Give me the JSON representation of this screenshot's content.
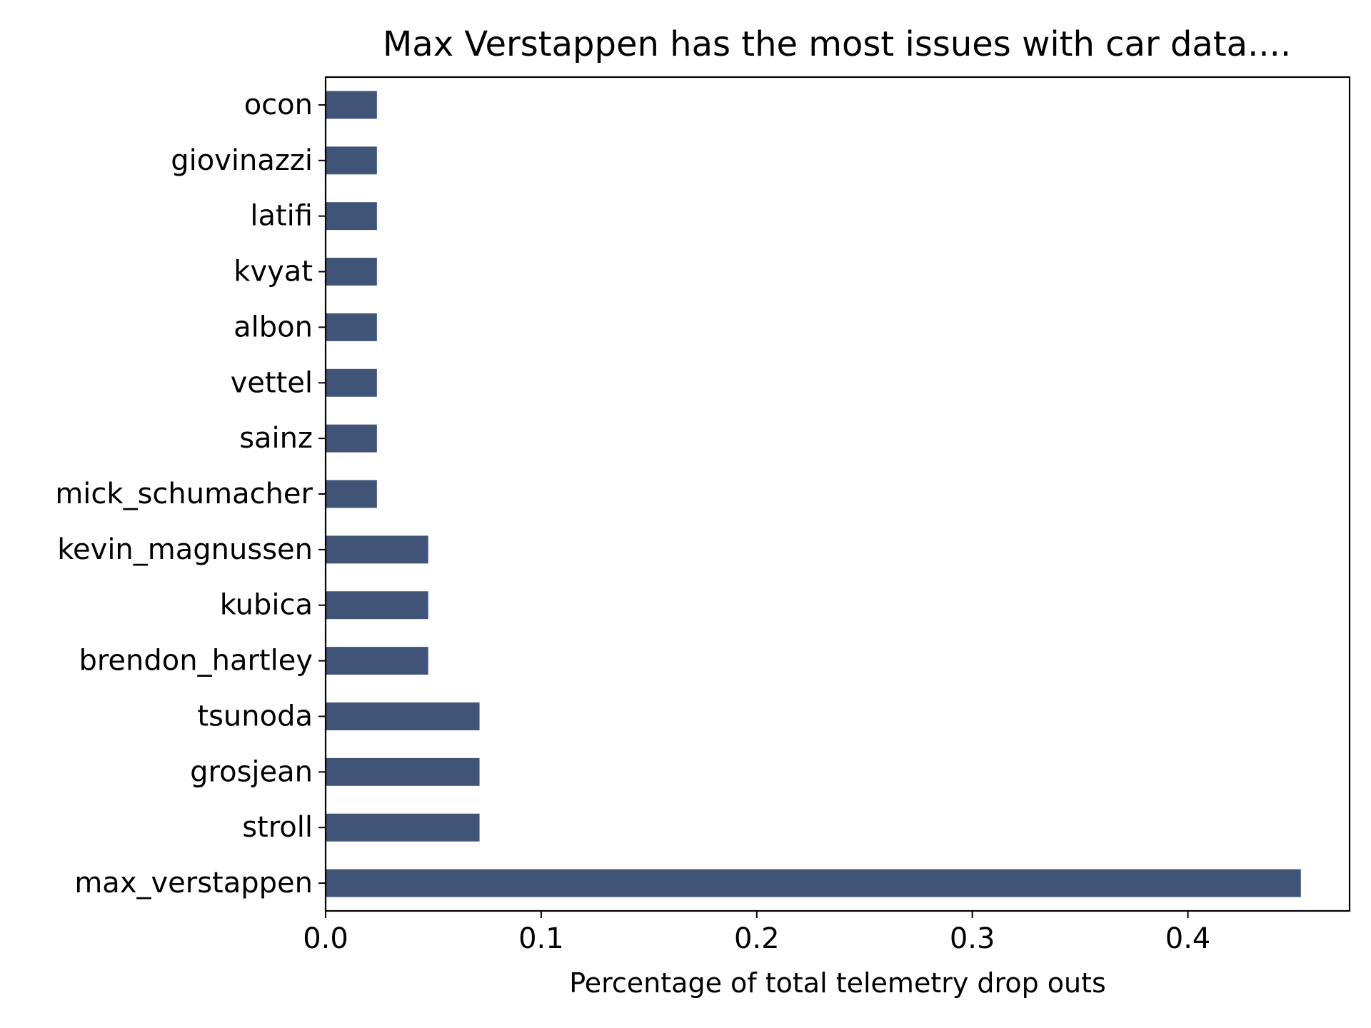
{
  "chart_data": {
    "type": "bar",
    "orientation": "horizontal",
    "title": "Max Verstappen has the most issues with car data....",
    "xlabel": "Percentage of total telemetry drop outs",
    "ylabel": "",
    "xlim": [
      0,
      0.475
    ],
    "xticks": [
      0.0,
      0.1,
      0.2,
      0.3,
      0.4
    ],
    "xtick_labels": [
      "0.0",
      "0.1",
      "0.2",
      "0.3",
      "0.4"
    ],
    "grid": false,
    "bar_color": "#3f5476",
    "categories": [
      "ocon",
      "giovinazzi",
      "latifi",
      "kvyat",
      "albon",
      "vettel",
      "sainz",
      "mick_schumacher",
      "kevin_magnussen",
      "kubica",
      "brendon_hartley",
      "tsunoda",
      "grosjean",
      "stroll",
      "max_verstappen"
    ],
    "values": [
      0.0238,
      0.0238,
      0.0238,
      0.0238,
      0.0238,
      0.0238,
      0.0238,
      0.0238,
      0.0476,
      0.0476,
      0.0476,
      0.0714,
      0.0714,
      0.0714,
      0.4524
    ]
  }
}
